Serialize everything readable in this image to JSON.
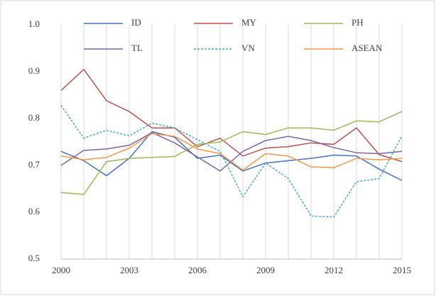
{
  "chart_data": {
    "type": "line",
    "x": [
      2000,
      2001,
      2002,
      2003,
      2004,
      2005,
      2006,
      2007,
      2008,
      2009,
      2010,
      2011,
      2012,
      2013,
      2014,
      2015
    ],
    "xlim": [
      2000,
      2015
    ],
    "xticks": [
      2000,
      2003,
      2006,
      2009,
      2012,
      2015
    ],
    "ylim": [
      0.5,
      1.0
    ],
    "yticks": [
      0.5,
      0.6,
      0.7,
      0.8,
      0.9,
      {
        "value": 1.0,
        "label": "1.0"
      }
    ],
    "grid": true,
    "legend": "top",
    "series": [
      {
        "name": "ID",
        "color": "#4472c4",
        "values": [
          0.73,
          0.71,
          0.678,
          0.715,
          0.772,
          0.76,
          0.715,
          0.722,
          0.688,
          0.705,
          0.71,
          0.715,
          0.722,
          0.72,
          0.692,
          0.668
        ]
      },
      {
        "name": "MY",
        "color": "#c0504d",
        "values": [
          0.86,
          0.905,
          0.838,
          0.815,
          0.78,
          0.78,
          0.74,
          0.758,
          0.72,
          0.737,
          0.74,
          0.748,
          0.745,
          0.78,
          0.723,
          0.708
        ]
      },
      {
        "name": "PH",
        "color": "#9bbb59",
        "values": [
          0.642,
          0.638,
          0.708,
          0.715,
          0.717,
          0.719,
          0.745,
          0.75,
          0.772,
          0.766,
          0.78,
          0.78,
          0.775,
          0.795,
          0.793,
          0.815
        ]
      },
      {
        "name": "TL",
        "color": "#8064a2",
        "values": [
          0.7,
          0.732,
          0.735,
          0.743,
          0.77,
          0.748,
          0.718,
          0.688,
          0.73,
          0.753,
          0.762,
          0.753,
          0.738,
          0.727,
          0.725,
          0.73
        ]
      },
      {
        "name": "VN",
        "color": "#4bacc6",
        "dashed": true,
        "values": [
          0.828,
          0.758,
          0.775,
          0.763,
          0.79,
          0.78,
          0.755,
          0.73,
          0.633,
          0.705,
          0.672,
          0.592,
          0.59,
          0.665,
          0.672,
          0.763
        ]
      },
      {
        "name": "ASEAN",
        "color": "#f79646",
        "values": [
          0.72,
          0.712,
          0.717,
          0.737,
          0.768,
          0.762,
          0.735,
          0.725,
          0.69,
          0.725,
          0.72,
          0.697,
          0.695,
          0.715,
          0.712,
          0.715
        ]
      }
    ]
  }
}
